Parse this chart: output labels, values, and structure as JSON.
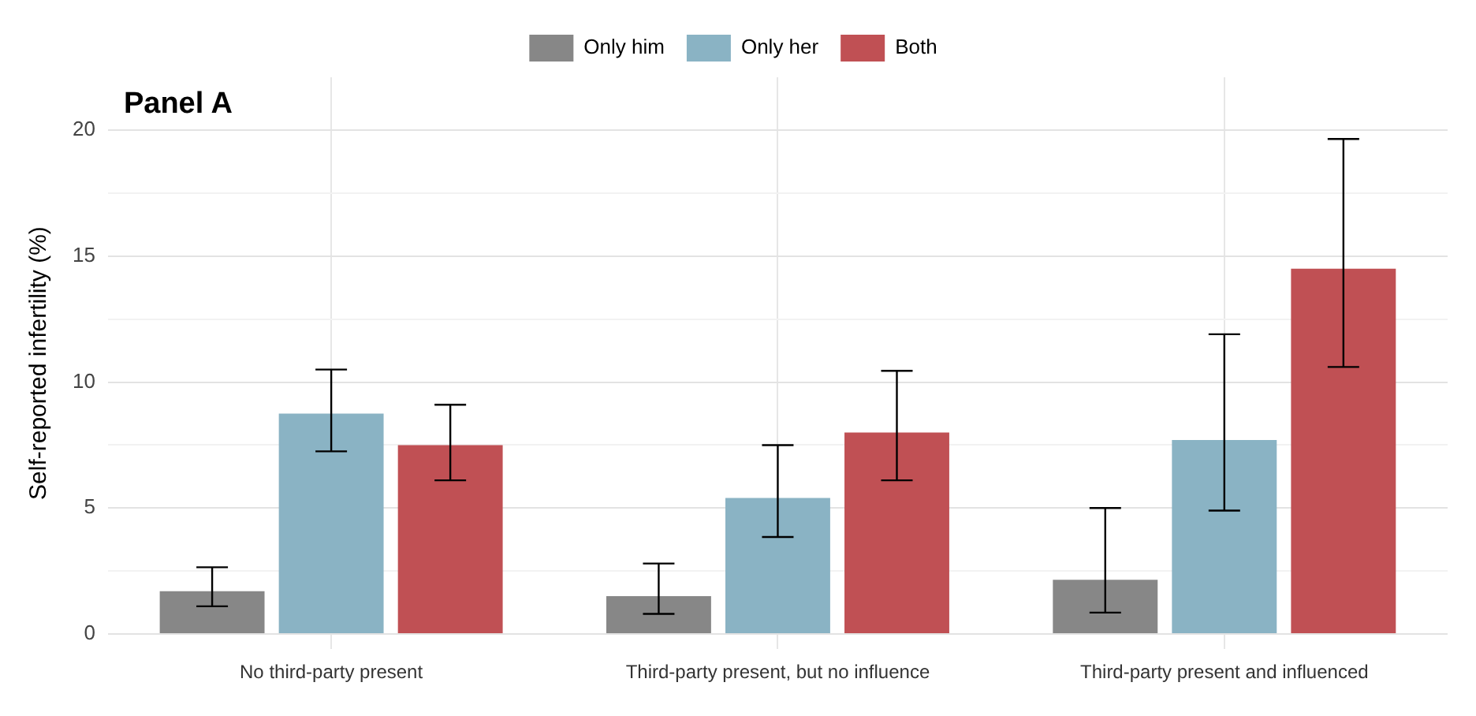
{
  "chart_data": {
    "type": "bar",
    "title": "Panel A",
    "ylabel": "Self-reported infertility (%)",
    "categories": [
      "No third-party present",
      "Third-party present, but no influence",
      "Third-party present and influenced"
    ],
    "series": [
      {
        "name": "Only him",
        "color": "#878787",
        "values": [
          1.7,
          1.5,
          2.15
        ],
        "errors": [
          [
            1.1,
            2.65
          ],
          [
            0.8,
            2.8
          ],
          [
            0.85,
            5.0
          ]
        ]
      },
      {
        "name": "Only her",
        "color": "#8ab3c4",
        "values": [
          8.75,
          5.4,
          7.7
        ],
        "errors": [
          [
            7.25,
            10.5
          ],
          [
            3.85,
            7.5
          ],
          [
            4.9,
            11.9
          ]
        ]
      },
      {
        "name": "Both",
        "color": "#c05054",
        "values": [
          7.5,
          8.0,
          14.5
        ],
        "errors": [
          [
            6.1,
            9.1
          ],
          [
            6.1,
            10.45
          ],
          [
            10.6,
            19.65
          ]
        ]
      }
    ],
    "ylim": [
      -0.6,
      22.1
    ],
    "yticks": [
      0,
      {
        "value": 2.5,
        "label": null
      },
      5,
      {
        "value": 7.5,
        "label": null
      },
      10,
      {
        "value": 12.5,
        "label": null
      },
      15,
      {
        "value": 17.5,
        "label": null
      },
      20
    ],
    "grid": true,
    "legend": "top"
  }
}
